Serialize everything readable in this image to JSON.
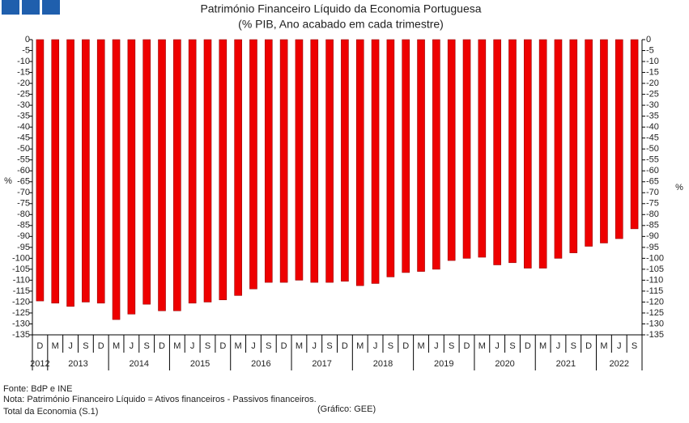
{
  "chart_data": {
    "type": "bar",
    "title": "Património Financeiro Líquido da Economia Portuguesa",
    "subtitle": "(% PIB, Ano acabado em cada trimestre)",
    "y_label": "%",
    "y2_label": "%",
    "color": "#ee0000",
    "categories": [
      "D",
      "M",
      "J",
      "S",
      "D",
      "M",
      "J",
      "S",
      "D",
      "M",
      "J",
      "S",
      "D",
      "M",
      "J",
      "S",
      "D",
      "M",
      "J",
      "S",
      "D",
      "M",
      "J",
      "S",
      "D",
      "M",
      "J",
      "S",
      "D",
      "M",
      "J",
      "S",
      "D",
      "M",
      "J",
      "S",
      "D",
      "M",
      "J",
      "S"
    ],
    "years": [
      "2012",
      "2013",
      "2014",
      "2015",
      "2016",
      "2017",
      "2018",
      "2019",
      "2020",
      "2021",
      "2022"
    ],
    "values": [
      -119.5,
      -120.5,
      -122,
      -120,
      -120.5,
      -128,
      -125.5,
      -121,
      -124,
      -124,
      -120.5,
      -120,
      -119,
      -117,
      -114,
      -111,
      -111,
      -110,
      -111,
      -111,
      -110.5,
      -112.5,
      -111.5,
      -108.5,
      -106.5,
      -106,
      -105,
      -101,
      -100,
      -99.5,
      -103,
      -102,
      -104.5,
      -104.5,
      -100,
      -97.5,
      -94.5,
      -93,
      -91,
      -86.5
    ],
    "ylim": [
      -135,
      0
    ],
    "yticks": [
      0,
      -5,
      -10,
      -15,
      -20,
      -25,
      -30,
      -35,
      -40,
      -45,
      -50,
      -55,
      -60,
      -65,
      -70,
      -75,
      -80,
      -85,
      -90,
      -95,
      -100,
      -105,
      -110,
      -115,
      -120,
      -125,
      -130,
      -135
    ],
    "y2lim": [
      -135,
      0
    ],
    "y2ticks": [
      0,
      -5,
      -10,
      -15,
      -20,
      -25,
      -30,
      -35,
      -40,
      -45,
      -50,
      -55,
      -60,
      -65,
      -70,
      -75,
      -80,
      -85,
      -90,
      -95,
      -100,
      -105,
      -110,
      -115,
      -120,
      -125,
      -130,
      -135
    ],
    "notes": [
      "Fonte: BdP e INE",
      "Nota: Património Financeiro Líquido = Ativos financeiros - Passivos financeiros.",
      "Total da Economia (S.1)"
    ],
    "credit": "(Gráfico: GEE)"
  }
}
